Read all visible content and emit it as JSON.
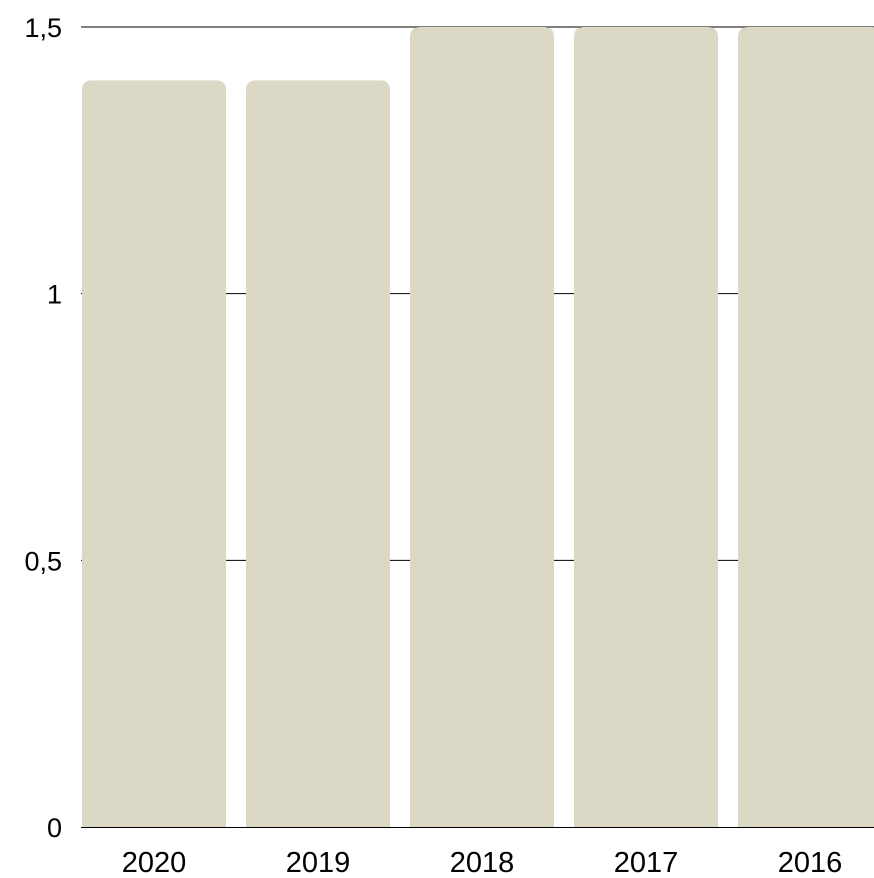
{
  "chart_data": {
    "type": "bar",
    "title": "",
    "xlabel": "",
    "ylabel": "",
    "categories": [
      "2020",
      "2019",
      "2018",
      "2017",
      "2016"
    ],
    "values": [
      1.4,
      1.4,
      1.5,
      1.5,
      1.5
    ],
    "ylim": [
      0,
      1.5
    ],
    "yticks": [
      {
        "value": 0,
        "label": "0"
      },
      {
        "value": 0.5,
        "label": "0,5"
      },
      {
        "value": 1,
        "label": "1"
      },
      {
        "value": 1.5,
        "label": "1,5"
      }
    ],
    "grid": true,
    "colors": {
      "bar": "#dcd8c6",
      "grid": "#000000",
      "text": "#000000"
    }
  }
}
